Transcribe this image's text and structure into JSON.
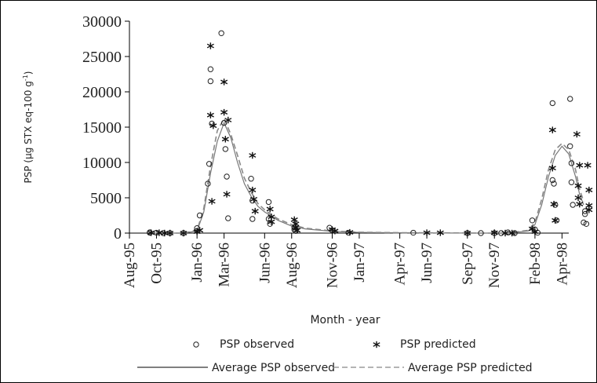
{
  "chart_data": {
    "type": "scatter",
    "xlabel": "Month - year",
    "ylabel_main": "PSP (μg STX eq-100 g",
    "ylabel_sup": "-1",
    "ylabel_close": ")",
    "ylim": [
      0,
      30000
    ],
    "yticks": [
      0,
      5000,
      10000,
      15000,
      20000,
      25000,
      30000
    ],
    "xlim": [
      0,
      32.5
    ],
    "xticks": [
      {
        "x": 0,
        "label": "Aug-95"
      },
      {
        "x": 2,
        "label": "Oct-95"
      },
      {
        "x": 5,
        "label": "Jan-96"
      },
      {
        "x": 7,
        "label": "Mar-96"
      },
      {
        "x": 10,
        "label": "Jun-96"
      },
      {
        "x": 12,
        "label": "Aug-96"
      },
      {
        "x": 15,
        "label": "Nov-96"
      },
      {
        "x": 17,
        "label": "Jan-97"
      },
      {
        "x": 20,
        "label": "Apr-97"
      },
      {
        "x": 22,
        "label": "Jun-97"
      },
      {
        "x": 25,
        "label": "Sep-97"
      },
      {
        "x": 27,
        "label": "Nov-97"
      },
      {
        "x": 30,
        "label": "Feb-98"
      },
      {
        "x": 32,
        "label": "Apr-98"
      }
    ],
    "series": [
      {
        "name": "PSP observed",
        "marker": "circle",
        "x": [
          1.5,
          1.5,
          2.0,
          2.5,
          3.0,
          4.0,
          5.0,
          5.0,
          5.2,
          5.8,
          5.9,
          6.0,
          6.0,
          6.1,
          6.8,
          7.0,
          7.1,
          7.2,
          7.3,
          9.0,
          9.1,
          9.1,
          10.3,
          10.3,
          10.4,
          12.2,
          12.2,
          12.3,
          14.8,
          15.0,
          16.2,
          21.0,
          25.0,
          26.0,
          27.0,
          27.5,
          28.0,
          28.5,
          29.8,
          30.0,
          30.2,
          31.3,
          31.3,
          31.4,
          31.5,
          31.6,
          32.6,
          32.6,
          32.7,
          32.7,
          32.8
        ],
        "y": [
          100,
          50,
          50,
          0,
          0,
          0,
          300,
          700,
          2500,
          7000,
          9800,
          21500,
          23200,
          15500,
          28300,
          15600,
          11900,
          8000,
          2100,
          7700,
          4600,
          2000,
          4400,
          2000,
          1300,
          800,
          500,
          300,
          750,
          400,
          50,
          50,
          0,
          0,
          0,
          0,
          100,
          0,
          1800,
          500,
          50,
          18400,
          7500,
          7000,
          4000,
          1800,
          19000,
          12300,
          9900,
          7200,
          4000
        ],
        "extra": [
          {
            "x": 33.7,
            "y": 3100
          },
          {
            "x": 33.7,
            "y": 2700
          },
          {
            "x": 33.8,
            "y": 1300
          },
          {
            "x": 33.6,
            "y": 1500
          }
        ]
      },
      {
        "name": "PSP predicted",
        "marker": "star",
        "x": [
          1.6,
          2.2,
          2.6,
          3.0,
          4.0,
          5.0,
          5.2,
          6.0,
          6.0,
          6.2,
          6.1,
          7.0,
          7.0,
          7.1,
          7.2,
          7.3,
          9.1,
          9.1,
          9.2,
          9.3,
          10.4,
          10.5,
          10.5,
          12.2,
          12.3,
          12.3,
          12.4,
          15.0,
          15.2,
          16.3,
          22.0,
          23.0,
          25.0,
          27.0,
          27.8,
          28.3,
          29.8,
          30.0,
          31.3,
          31.3,
          31.4,
          31.5,
          33.1,
          33.2,
          33.2,
          33.3,
          33.3
        ],
        "y": [
          50,
          50,
          0,
          0,
          0,
          200,
          400,
          26500,
          16700,
          15200,
          4500,
          21400,
          17100,
          13300,
          5500,
          16000,
          11000,
          6100,
          4800,
          3100,
          3400,
          2300,
          1600,
          1900,
          1300,
          800,
          400,
          500,
          300,
          100,
          50,
          50,
          0,
          50,
          0,
          0,
          600,
          200,
          14600,
          9200,
          4100,
          1800,
          14000,
          6700,
          5000,
          4100,
          9600
        ],
        "extra": [
          {
            "x": 34.0,
            "y": 6100
          },
          {
            "x": 34.0,
            "y": 3900
          },
          {
            "x": 34.0,
            "y": 3300
          },
          {
            "x": 33.9,
            "y": 9600
          }
        ]
      }
    ],
    "lines": [
      {
        "name": "Average PSP observed",
        "style": "solid",
        "x": [
          1.5,
          4.0,
          5.0,
          5.5,
          6.0,
          6.5,
          7.0,
          7.5,
          8.0,
          8.5,
          9.0,
          9.5,
          10.0,
          10.5,
          11.0,
          12.0,
          13.0,
          15.0,
          17.0,
          20.0,
          23.0,
          26.0,
          28.0,
          29.5,
          30.0,
          30.5,
          31.0,
          31.5,
          32.0,
          32.5,
          33.0,
          33.3,
          33.6
        ],
        "y": [
          0,
          0,
          300,
          3000,
          8500,
          13000,
          15600,
          13500,
          10000,
          7000,
          5200,
          3800,
          3000,
          2400,
          1800,
          1000,
          600,
          250,
          100,
          50,
          20,
          0,
          0,
          300,
          1200,
          4000,
          8000,
          11000,
          12300,
          11200,
          8000,
          5500,
          4000
        ]
      },
      {
        "name": "Average PSP predicted",
        "style": "dashed",
        "x": [
          1.5,
          4.0,
          5.0,
          5.5,
          6.0,
          6.5,
          7.0,
          7.5,
          8.0,
          8.5,
          9.0,
          9.5,
          10.0,
          10.5,
          11.0,
          12.0,
          13.0,
          15.0,
          17.0,
          20.0,
          23.0,
          26.0,
          28.0,
          29.5,
          30.0,
          30.5,
          31.0,
          31.5,
          32.0,
          32.5,
          33.0,
          33.3,
          33.6
        ],
        "y": [
          0,
          0,
          400,
          3500,
          9500,
          14500,
          16200,
          14000,
          11000,
          7800,
          5800,
          4200,
          3300,
          2600,
          2000,
          1200,
          700,
          300,
          120,
          60,
          30,
          0,
          0,
          400,
          1500,
          4800,
          9000,
          11800,
          12700,
          11800,
          9000,
          6200,
          4500
        ]
      }
    ],
    "legend": [
      {
        "label": "PSP observed",
        "kind": "circle"
      },
      {
        "label": "PSP predicted",
        "kind": "star"
      },
      {
        "label": "Average PSP observed",
        "kind": "solid"
      },
      {
        "label": "Average PSP predicted",
        "kind": "dashed"
      }
    ],
    "legend_position": "bottom"
  }
}
